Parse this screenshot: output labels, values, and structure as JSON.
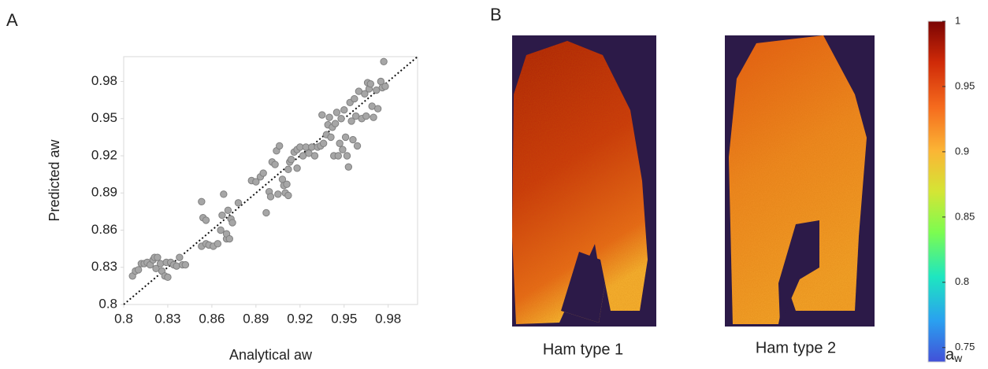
{
  "chart_data": [
    {
      "type": "scatter",
      "panel": "A",
      "x_label": "Analytical aw",
      "y_label": "Predicted aw",
      "xlim": [
        0.8,
        1.0
      ],
      "ylim": [
        0.8,
        1.0
      ],
      "xticks": [
        0.8,
        0.83,
        0.86,
        0.89,
        0.92,
        0.95,
        0.98
      ],
      "yticks": [
        0.8,
        0.83,
        0.86,
        0.89,
        0.92,
        0.95,
        0.98
      ],
      "identity_line": true,
      "color": "#a6a6a6",
      "x": [
        0.806,
        0.808,
        0.81,
        0.812,
        0.814,
        0.816,
        0.818,
        0.82,
        0.821,
        0.823,
        0.822,
        0.825,
        0.826,
        0.828,
        0.829,
        0.83,
        0.832,
        0.834,
        0.836,
        0.838,
        0.84,
        0.842,
        0.853,
        0.854,
        0.856,
        0.853,
        0.856,
        0.858,
        0.861,
        0.864,
        0.866,
        0.867,
        0.868,
        0.87,
        0.87,
        0.871,
        0.873,
        0.874,
        0.872,
        0.878,
        0.887,
        0.89,
        0.893,
        0.895,
        0.897,
        0.899,
        0.9,
        0.901,
        0.903,
        0.904,
        0.906,
        0.905,
        0.908,
        0.909,
        0.91,
        0.911,
        0.912,
        0.912,
        0.913,
        0.914,
        0.916,
        0.918,
        0.918,
        0.92,
        0.922,
        0.924,
        0.926,
        0.928,
        0.93,
        0.932,
        0.934,
        0.935,
        0.936,
        0.938,
        0.939,
        0.94,
        0.941,
        0.942,
        0.943,
        0.944,
        0.945,
        0.946,
        0.947,
        0.948,
        0.949,
        0.95,
        0.951,
        0.952,
        0.953,
        0.954,
        0.955,
        0.956,
        0.957,
        0.958,
        0.959,
        0.96,
        0.962,
        0.964,
        0.965,
        0.966,
        0.967,
        0.968,
        0.969,
        0.97,
        0.972,
        0.973,
        0.975,
        0.976,
        0.977,
        0.978
      ],
      "values": [
        0.823,
        0.827,
        0.828,
        0.833,
        0.833,
        0.834,
        0.832,
        0.836,
        0.838,
        0.838,
        0.829,
        0.833,
        0.827,
        0.823,
        0.834,
        0.822,
        0.834,
        0.832,
        0.831,
        0.838,
        0.832,
        0.832,
        0.883,
        0.87,
        0.868,
        0.847,
        0.849,
        0.848,
        0.847,
        0.849,
        0.86,
        0.872,
        0.889,
        0.853,
        0.857,
        0.876,
        0.869,
        0.866,
        0.853,
        0.882,
        0.9,
        0.899,
        0.903,
        0.906,
        0.874,
        0.891,
        0.887,
        0.915,
        0.913,
        0.924,
        0.928,
        0.889,
        0.901,
        0.896,
        0.89,
        0.897,
        0.888,
        0.909,
        0.915,
        0.917,
        0.923,
        0.925,
        0.91,
        0.927,
        0.92,
        0.927,
        0.922,
        0.927,
        0.92,
        0.927,
        0.928,
        0.953,
        0.93,
        0.937,
        0.945,
        0.951,
        0.935,
        0.943,
        0.92,
        0.946,
        0.955,
        0.92,
        0.93,
        0.95,
        0.925,
        0.957,
        0.935,
        0.92,
        0.911,
        0.963,
        0.948,
        0.933,
        0.966,
        0.952,
        0.928,
        0.972,
        0.95,
        0.97,
        0.952,
        0.979,
        0.974,
        0.978,
        0.96,
        0.951,
        0.973,
        0.958,
        0.98,
        0.975,
        0.996,
        0.976
      ]
    },
    {
      "type": "image-colorbar",
      "panel": "B",
      "captions": [
        "Ham type 1",
        "Ham type 2"
      ],
      "colorbar_label": "a",
      "colorbar_label_sub": "w",
      "clim": [
        0.739,
        1
      ],
      "cticks": [
        0.75,
        0.8,
        0.85,
        0.9,
        0.95,
        1
      ]
    }
  ]
}
